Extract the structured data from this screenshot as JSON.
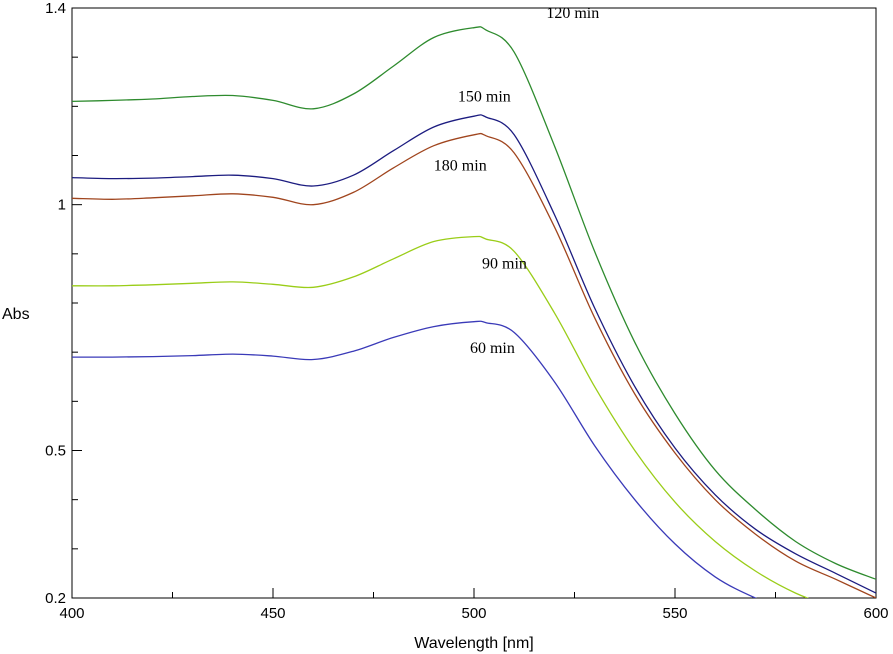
{
  "chart_data": {
    "type": "line",
    "title": "",
    "xlabel": "Wavelength [nm]",
    "ylabel": "Abs",
    "xlim": [
      400,
      600
    ],
    "ylim": [
      0.2,
      1.4
    ],
    "x_ticks": [
      400,
      450,
      500,
      550,
      600
    ],
    "x_tick_labels": [
      "400",
      "450",
      "500",
      "550",
      "600"
    ],
    "y_ticks": [
      0.2,
      0.5,
      1,
      1.4
    ],
    "y_tick_labels": [
      "0.2",
      "0.5",
      "1",
      "1.4"
    ],
    "grid": false,
    "x": [
      400,
      410,
      420,
      430,
      440,
      450,
      460,
      470,
      480,
      490,
      500,
      503,
      510,
      520,
      530,
      540,
      550,
      560,
      570,
      580,
      590,
      600
    ],
    "series": [
      {
        "name": "120 min",
        "color": "#2e8b2e",
        "values": [
          1.21,
          1.212,
          1.215,
          1.22,
          1.222,
          1.212,
          1.195,
          1.225,
          1.282,
          1.34,
          1.36,
          1.355,
          1.31,
          1.12,
          0.905,
          0.72,
          0.575,
          0.46,
          0.38,
          0.315,
          0.27,
          0.238
        ]
      },
      {
        "name": "150 min",
        "color": "#1c1c80",
        "values": [
          1.055,
          1.053,
          1.054,
          1.057,
          1.06,
          1.053,
          1.038,
          1.06,
          1.11,
          1.158,
          1.18,
          1.178,
          1.142,
          0.98,
          0.79,
          0.63,
          0.505,
          0.41,
          0.34,
          0.29,
          0.25,
          0.21
        ]
      },
      {
        "name": "180 min",
        "color": "#a0451e",
        "values": [
          1.013,
          1.011,
          1.014,
          1.018,
          1.022,
          1.015,
          1.0,
          1.025,
          1.075,
          1.12,
          1.142,
          1.14,
          1.105,
          0.955,
          0.77,
          0.615,
          0.495,
          0.4,
          0.33,
          0.275,
          0.238,
          0.2
        ]
      },
      {
        "name": "90 min",
        "color": "#9acd18",
        "values": [
          0.835,
          0.835,
          0.837,
          0.84,
          0.843,
          0.838,
          0.832,
          0.853,
          0.89,
          0.925,
          0.935,
          0.93,
          0.905,
          0.78,
          0.63,
          0.5,
          0.395,
          0.315,
          0.255,
          0.21,
          0.18,
          0.16
        ]
      },
      {
        "name": "60 min",
        "color": "#3a3ab8",
        "values": [
          0.69,
          0.69,
          0.691,
          0.693,
          0.696,
          0.692,
          0.685,
          0.702,
          0.73,
          0.752,
          0.762,
          0.76,
          0.74,
          0.64,
          0.51,
          0.4,
          0.31,
          0.243,
          0.2,
          0.17,
          0.15,
          0.13
        ]
      }
    ],
    "annotations": [
      {
        "text": "120 min",
        "x": 518,
        "y": 1.38
      },
      {
        "text": "150 min",
        "x": 496,
        "y": 1.21
      },
      {
        "text": "180 min",
        "x": 490,
        "y": 1.07
      },
      {
        "text": "90 min",
        "x": 502,
        "y": 0.87
      },
      {
        "text": "60 min",
        "x": 499,
        "y": 0.698
      }
    ]
  }
}
